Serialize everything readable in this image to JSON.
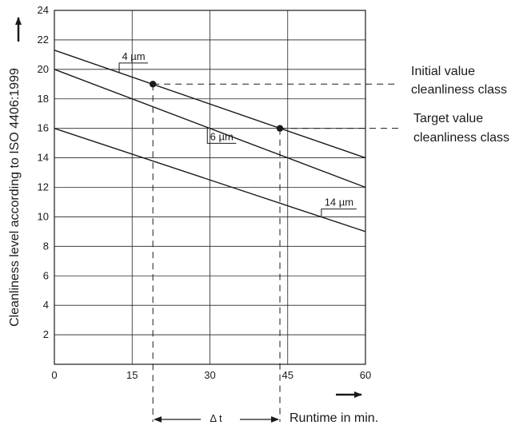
{
  "chart_data": {
    "type": "line",
    "title": "",
    "xlabel": "Runtime in min.",
    "ylabel": "Cleanliness level according to ISO 4406:1999",
    "xlim": [
      0,
      60
    ],
    "ylim": [
      0,
      24
    ],
    "x_ticks": [
      0,
      15,
      30,
      45,
      60
    ],
    "x_tick_labels": [
      "0",
      "15",
      "30",
      "45",
      "60"
    ],
    "y_ticks": [
      2,
      4,
      6,
      8,
      10,
      12,
      14,
      16,
      18,
      20,
      22,
      24
    ],
    "y_tick_labels": [
      "2",
      "4",
      "6",
      "8",
      "10",
      "12",
      "14",
      "16",
      "18",
      "20",
      "22",
      "24"
    ],
    "grid": true,
    "series": [
      {
        "name": "4 µm",
        "x": [
          0,
          60
        ],
        "y": [
          21.3,
          14.0
        ]
      },
      {
        "name": "6 µm",
        "x": [
          0,
          60
        ],
        "y": [
          20.0,
          12.0
        ]
      },
      {
        "name": "14 µm",
        "x": [
          0,
          60
        ],
        "y": [
          16.0,
          9.0
        ]
      }
    ],
    "points": [
      {
        "label": "Initial value cleanliness class",
        "x": 19,
        "y": 19
      },
      {
        "label": "Target value cleanliness class",
        "x": 43.5,
        "y": 16
      }
    ],
    "annotations": {
      "initial_line1": "Initial value",
      "initial_line2": "cleanliness class",
      "target_line1": "Target value",
      "target_line2": "cleanliness class",
      "delta": "Δ t"
    }
  }
}
